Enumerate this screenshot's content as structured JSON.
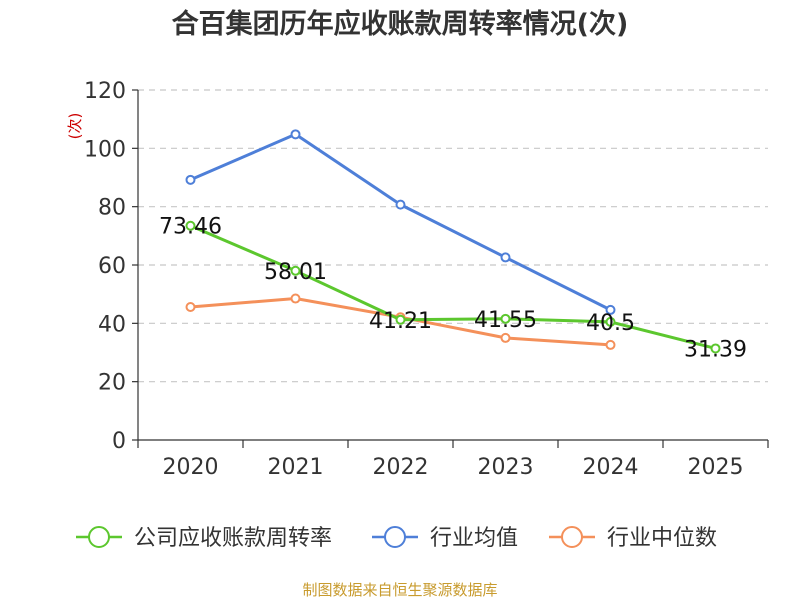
{
  "chart_data": {
    "type": "line",
    "title": "合百集团历年应收账款周转率情况(次)",
    "ylabel": "(次)",
    "xlabel": "",
    "ylim": [
      0,
      120
    ],
    "yticks": [
      0,
      20,
      40,
      60,
      80,
      100,
      120
    ],
    "grid": true,
    "categories": [
      "2020",
      "2021",
      "2022",
      "2023",
      "2024",
      "2025"
    ],
    "series": [
      {
        "name": "公司应收账款周转率",
        "color": "#5cc72e",
        "values": [
          73.46,
          58.01,
          41.21,
          41.55,
          40.5,
          31.39
        ],
        "labels": [
          "73.46",
          "58.01",
          "41.21",
          "41.55",
          "40.5",
          "31.39"
        ]
      },
      {
        "name": "行业均值",
        "color": "#4e7fd8",
        "values": [
          89.2,
          104.8,
          80.7,
          62.6,
          44.6,
          null
        ]
      },
      {
        "name": "行业中位数",
        "color": "#f4905a",
        "values": [
          45.6,
          48.5,
          42.1,
          35.0,
          32.6,
          null
        ]
      }
    ],
    "legend_position": "bottom",
    "source": "制图数据来自恒生聚源数据库"
  }
}
